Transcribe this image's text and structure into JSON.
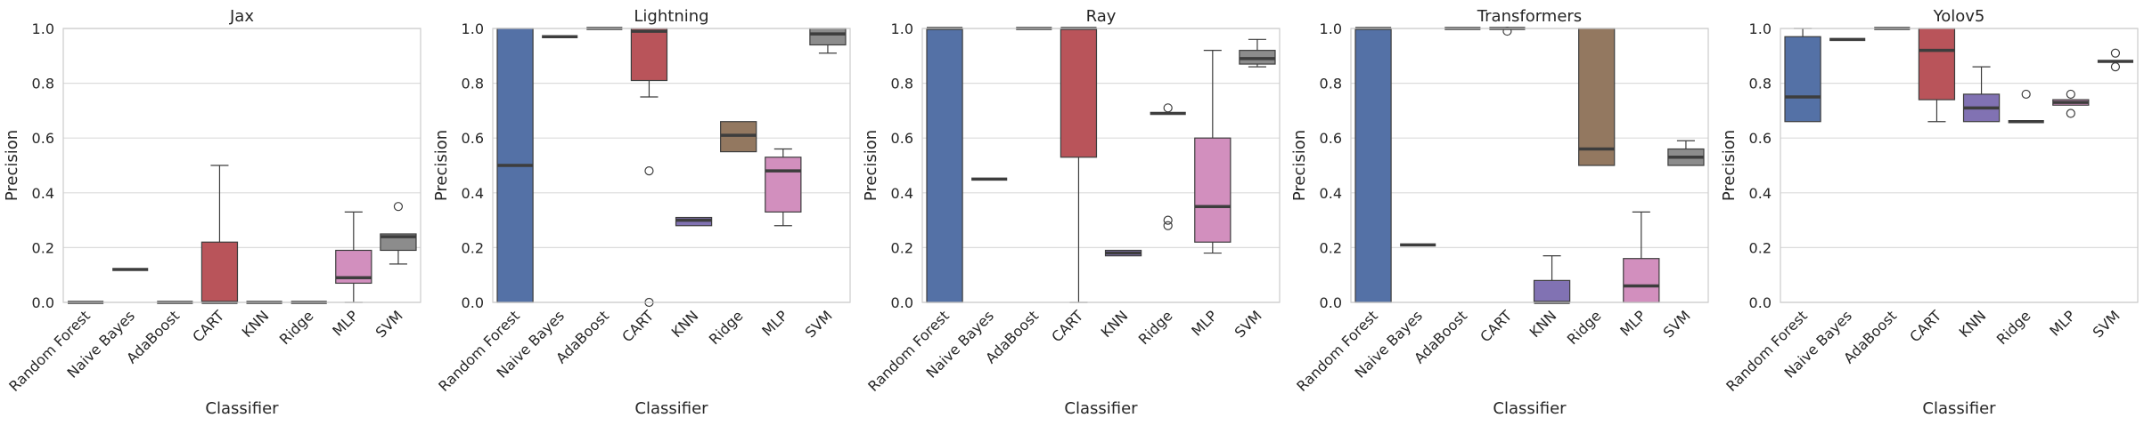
{
  "chart_data": [
    {
      "type": "box",
      "title": "Jax",
      "xlabel": "Classifier",
      "ylabel": "Precision",
      "ylim": [
        0,
        1
      ],
      "yticks": [
        "0.0",
        "0.2",
        "0.4",
        "0.6",
        "0.8",
        "1.0"
      ],
      "grid": true,
      "categories": [
        "Random Forest",
        "Naive Bayes",
        "AdaBoost",
        "CART",
        "KNN",
        "Ridge",
        "MLP",
        "SVM"
      ],
      "boxes": [
        {
          "q1": 0.0,
          "median": 0.0,
          "q3": 0.0,
          "wlo": 0.0,
          "whi": 0.0,
          "fliers": []
        },
        {
          "q1": 0.12,
          "median": 0.12,
          "q3": 0.12,
          "wlo": 0.12,
          "whi": 0.12,
          "fliers": []
        },
        {
          "q1": 0.0,
          "median": 0.0,
          "q3": 0.0,
          "wlo": 0.0,
          "whi": 0.0,
          "fliers": []
        },
        {
          "q1": 0.0,
          "median": 0.0,
          "q3": 0.22,
          "wlo": 0.0,
          "whi": 0.5,
          "fliers": []
        },
        {
          "q1": 0.0,
          "median": 0.0,
          "q3": 0.0,
          "wlo": 0.0,
          "whi": 0.0,
          "fliers": []
        },
        {
          "q1": 0.0,
          "median": 0.0,
          "q3": 0.0,
          "wlo": 0.0,
          "whi": 0.0,
          "fliers": []
        },
        {
          "q1": 0.07,
          "median": 0.09,
          "q3": 0.19,
          "wlo": 0.0,
          "whi": 0.33,
          "fliers": []
        },
        {
          "q1": 0.19,
          "median": 0.24,
          "q3": 0.25,
          "wlo": 0.14,
          "whi": 0.25,
          "fliers": [
            0.35
          ]
        }
      ]
    },
    {
      "type": "box",
      "title": "Lightning",
      "xlabel": "Classifier",
      "ylabel": "Precision",
      "ylim": [
        0,
        1
      ],
      "yticks": [
        "0.0",
        "0.2",
        "0.4",
        "0.6",
        "0.8",
        "1.0"
      ],
      "grid": true,
      "categories": [
        "Random Forest",
        "Naive Bayes",
        "AdaBoost",
        "CART",
        "KNN",
        "Ridge",
        "MLP",
        "SVM"
      ],
      "boxes": [
        {
          "q1": 0.0,
          "median": 0.5,
          "q3": 1.0,
          "wlo": 0.0,
          "whi": 1.0,
          "fliers": []
        },
        {
          "q1": 0.97,
          "median": 0.97,
          "q3": 0.97,
          "wlo": 0.97,
          "whi": 0.97,
          "fliers": []
        },
        {
          "q1": 1.0,
          "median": 1.0,
          "q3": 1.0,
          "wlo": 1.0,
          "whi": 1.0,
          "fliers": []
        },
        {
          "q1": 0.81,
          "median": 0.99,
          "q3": 1.0,
          "wlo": 0.75,
          "whi": 1.0,
          "fliers": [
            0.48,
            0.0
          ]
        },
        {
          "q1": 0.28,
          "median": 0.3,
          "q3": 0.31,
          "wlo": 0.28,
          "whi": 0.31,
          "fliers": []
        },
        {
          "q1": 0.55,
          "median": 0.61,
          "q3": 0.66,
          "wlo": 0.55,
          "whi": 0.66,
          "fliers": []
        },
        {
          "q1": 0.33,
          "median": 0.48,
          "q3": 0.53,
          "wlo": 0.28,
          "whi": 0.56,
          "fliers": []
        },
        {
          "q1": 0.94,
          "median": 0.98,
          "q3": 1.0,
          "wlo": 0.91,
          "whi": 1.0,
          "fliers": []
        }
      ]
    },
    {
      "type": "box",
      "title": "Ray",
      "xlabel": "Classifier",
      "ylabel": "Precision",
      "ylim": [
        0,
        1
      ],
      "yticks": [
        "0.0",
        "0.2",
        "0.4",
        "0.6",
        "0.8",
        "1.0"
      ],
      "grid": true,
      "categories": [
        "Random Forest",
        "Naive Bayes",
        "AdaBoost",
        "CART",
        "KNN",
        "Ridge",
        "MLP",
        "SVM"
      ],
      "boxes": [
        {
          "q1": 0.0,
          "median": 1.0,
          "q3": 1.0,
          "wlo": 0.0,
          "whi": 1.0,
          "fliers": []
        },
        {
          "q1": 0.45,
          "median": 0.45,
          "q3": 0.45,
          "wlo": 0.45,
          "whi": 0.45,
          "fliers": []
        },
        {
          "q1": 1.0,
          "median": 1.0,
          "q3": 1.0,
          "wlo": 1.0,
          "whi": 1.0,
          "fliers": []
        },
        {
          "q1": 0.53,
          "median": 1.0,
          "q3": 1.0,
          "wlo": 0.0,
          "whi": 1.0,
          "fliers": []
        },
        {
          "q1": 0.17,
          "median": 0.18,
          "q3": 0.19,
          "wlo": 0.17,
          "whi": 0.19,
          "fliers": []
        },
        {
          "q1": 0.69,
          "median": 0.69,
          "q3": 0.69,
          "wlo": 0.69,
          "whi": 0.69,
          "fliers": [
            0.71,
            0.3,
            0.28
          ]
        },
        {
          "q1": 0.22,
          "median": 0.35,
          "q3": 0.6,
          "wlo": 0.18,
          "whi": 0.92,
          "fliers": []
        },
        {
          "q1": 0.87,
          "median": 0.89,
          "q3": 0.92,
          "wlo": 0.86,
          "whi": 0.96,
          "fliers": []
        }
      ]
    },
    {
      "type": "box",
      "title": "Transformers",
      "xlabel": "Classifier",
      "ylabel": "Precision",
      "ylim": [
        0,
        1
      ],
      "yticks": [
        "0.0",
        "0.2",
        "0.4",
        "0.6",
        "0.8",
        "1.0"
      ],
      "grid": true,
      "categories": [
        "Random Forest",
        "Naive Bayes",
        "AdaBoost",
        "CART",
        "KNN",
        "Ridge",
        "MLP",
        "SVM"
      ],
      "boxes": [
        {
          "q1": 0.0,
          "median": 1.0,
          "q3": 1.0,
          "wlo": 0.0,
          "whi": 1.0,
          "fliers": []
        },
        {
          "q1": 0.21,
          "median": 0.21,
          "q3": 0.21,
          "wlo": 0.21,
          "whi": 0.21,
          "fliers": []
        },
        {
          "q1": 1.0,
          "median": 1.0,
          "q3": 1.0,
          "wlo": 1.0,
          "whi": 1.0,
          "fliers": []
        },
        {
          "q1": 1.0,
          "median": 1.0,
          "q3": 1.0,
          "wlo": 1.0,
          "whi": 1.0,
          "fliers": [
            0.99
          ]
        },
        {
          "q1": 0.0,
          "median": 0.0,
          "q3": 0.08,
          "wlo": 0.0,
          "whi": 0.17,
          "fliers": []
        },
        {
          "q1": 0.5,
          "median": 0.56,
          "q3": 1.0,
          "wlo": 0.5,
          "whi": 1.0,
          "fliers": []
        },
        {
          "q1": 0.0,
          "median": 0.06,
          "q3": 0.16,
          "wlo": 0.0,
          "whi": 0.33,
          "fliers": []
        },
        {
          "q1": 0.5,
          "median": 0.53,
          "q3": 0.56,
          "wlo": 0.5,
          "whi": 0.59,
          "fliers": []
        }
      ]
    },
    {
      "type": "box",
      "title": "Yolov5",
      "xlabel": "Classifier",
      "ylabel": "Precision",
      "ylim": [
        0,
        1
      ],
      "yticks": [
        "0.0",
        "0.2",
        "0.4",
        "0.6",
        "0.8",
        "1.0"
      ],
      "grid": true,
      "categories": [
        "Random Forest",
        "Naive Bayes",
        "AdaBoost",
        "CART",
        "KNN",
        "Ridge",
        "MLP",
        "SVM"
      ],
      "boxes": [
        {
          "q1": 0.66,
          "median": 0.75,
          "q3": 0.97,
          "wlo": 0.66,
          "whi": 1.0,
          "fliers": []
        },
        {
          "q1": 0.96,
          "median": 0.96,
          "q3": 0.96,
          "wlo": 0.96,
          "whi": 0.96,
          "fliers": []
        },
        {
          "q1": 1.0,
          "median": 1.0,
          "q3": 1.0,
          "wlo": 1.0,
          "whi": 1.0,
          "fliers": []
        },
        {
          "q1": 0.74,
          "median": 0.92,
          "q3": 1.0,
          "wlo": 0.66,
          "whi": 1.0,
          "fliers": []
        },
        {
          "q1": 0.66,
          "median": 0.71,
          "q3": 0.76,
          "wlo": 0.66,
          "whi": 0.86,
          "fliers": []
        },
        {
          "q1": 0.66,
          "median": 0.66,
          "q3": 0.66,
          "wlo": 0.66,
          "whi": 0.66,
          "fliers": [
            0.76
          ]
        },
        {
          "q1": 0.72,
          "median": 0.73,
          "q3": 0.74,
          "wlo": 0.72,
          "whi": 0.74,
          "fliers": [
            0.76,
            0.69
          ]
        },
        {
          "q1": 0.88,
          "median": 0.88,
          "q3": 0.88,
          "wlo": 0.88,
          "whi": 0.88,
          "fliers": [
            0.91,
            0.86
          ]
        }
      ]
    }
  ],
  "palette": [
    "#5471a6",
    "#dd8452",
    "#55a868",
    "#b9545a",
    "#8172b3",
    "#937860",
    "#d28fbe",
    "#8c8c8c"
  ],
  "style": {
    "grid_color": "#dcdcdc",
    "frame_color": "#cccccc",
    "line_color": "#3d3d3d"
  }
}
